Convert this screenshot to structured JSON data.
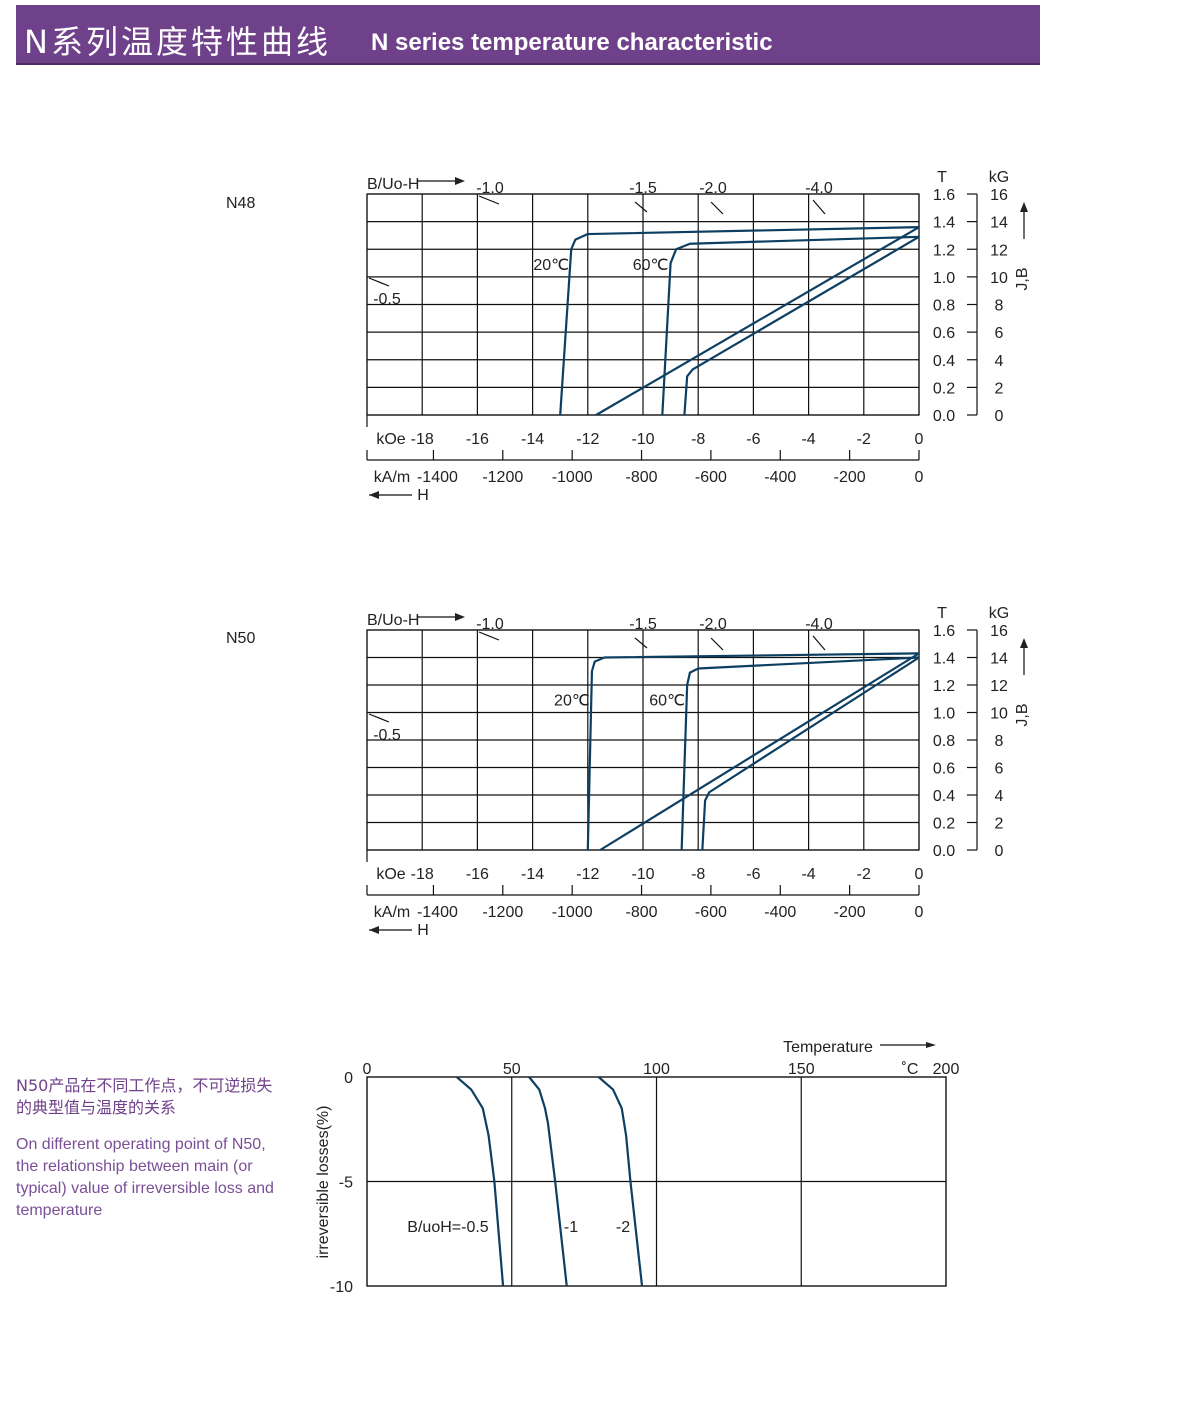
{
  "header": {
    "title_cn": "N系列温度特性曲线",
    "title_en": "N series temperature characteristic"
  },
  "side_note": {
    "cn": "N50产品在不同工作点，不可逆损失的典型值与温度的关系",
    "en": "On different operating point of N50, the relationship between main (or typical) value of irreversible loss and temperature"
  },
  "colors": {
    "header": "#6f418a",
    "curve": "#0d3f63",
    "grid": "#111111"
  },
  "chart_data": [
    {
      "type": "line",
      "label": "N48",
      "x_unit_top": "kOe",
      "x_unit_bottom": "kA/m",
      "x_arrow_label": "H",
      "y_unit_left": "T",
      "y_unit_right": "kG",
      "y_axis_label": "J,B",
      "permeance_label": "B/Uo-H",
      "xlim": [
        -20,
        0
      ],
      "ylim": [
        0,
        1.6
      ],
      "grid": true,
      "x_ticks": [
        -18,
        -16,
        -14,
        -12,
        -10,
        -8,
        -6,
        -4,
        -2,
        0
      ],
      "x_ticks_kAm": [
        -1400,
        -1200,
        -1000,
        -800,
        -600,
        -400,
        -200,
        0
      ],
      "y_ticks": [
        0.0,
        0.2,
        0.4,
        0.6,
        0.8,
        1.0,
        1.2,
        1.4,
        1.6
      ],
      "y_ticks_kG": [
        0,
        2,
        4,
        6,
        8,
        10,
        12,
        14,
        16
      ],
      "permeance_lines": [
        "-0.5",
        "-1.0",
        "-1.5",
        "-2.0",
        "-4.0"
      ],
      "series": [
        {
          "name": "20℃",
          "kind": "J",
          "points": [
            [
              0,
              1.36
            ],
            [
              -12,
              1.31
            ],
            [
              -12.45,
              1.27
            ],
            [
              -12.6,
              1.2
            ],
            [
              -13,
              0
            ]
          ]
        },
        {
          "name": "60℃",
          "kind": "J",
          "points": [
            [
              0,
              1.29
            ],
            [
              -8.3,
              1.24
            ],
            [
              -8.8,
              1.2
            ],
            [
              -9,
              1.1
            ],
            [
              -9.3,
              0
            ]
          ]
        },
        {
          "kind": "B",
          "points": [
            [
              0,
              1.36
            ],
            [
              -11.7,
              0
            ]
          ]
        },
        {
          "kind": "B",
          "points": [
            [
              0,
              1.29
            ],
            [
              -8.2,
              0.33
            ],
            [
              -8.4,
              0.28
            ],
            [
              -8.5,
              0
            ]
          ]
        }
      ]
    },
    {
      "type": "line",
      "label": "N50",
      "x_unit_top": "kOe",
      "x_unit_bottom": "kA/m",
      "x_arrow_label": "H",
      "y_unit_left": "T",
      "y_unit_right": "kG",
      "y_axis_label": "J,B",
      "permeance_label": "B/Uo-H",
      "xlim": [
        -20,
        0
      ],
      "ylim": [
        0,
        1.6
      ],
      "grid": true,
      "x_ticks": [
        -18,
        -16,
        -14,
        -12,
        -10,
        -8,
        -6,
        -4,
        -2,
        0
      ],
      "x_ticks_kAm": [
        -1400,
        -1200,
        -1000,
        -800,
        -600,
        -400,
        -200,
        0
      ],
      "y_ticks": [
        0.0,
        0.2,
        0.4,
        0.6,
        0.8,
        1.0,
        1.2,
        1.4,
        1.6
      ],
      "y_ticks_kG": [
        0,
        2,
        4,
        6,
        8,
        10,
        12,
        14,
        16
      ],
      "permeance_lines": [
        "-0.5",
        "-1.0",
        "-1.5",
        "-2.0",
        "-4.0"
      ],
      "series": [
        {
          "name": "20℃",
          "kind": "J",
          "points": [
            [
              0,
              1.43
            ],
            [
              -11.4,
              1.4
            ],
            [
              -11.75,
              1.37
            ],
            [
              -11.85,
              1.3
            ],
            [
              -12,
              0
            ]
          ]
        },
        {
          "name": "60℃",
          "kind": "J",
          "points": [
            [
              0,
              1.4
            ],
            [
              -8,
              1.32
            ],
            [
              -8.3,
              1.29
            ],
            [
              -8.4,
              1.2
            ],
            [
              -8.6,
              0
            ]
          ]
        },
        {
          "kind": "B",
          "points": [
            [
              0,
              1.43
            ],
            [
              -11.55,
              0
            ]
          ]
        },
        {
          "kind": "B",
          "points": [
            [
              0,
              1.4
            ],
            [
              -7.6,
              0.42
            ],
            [
              -7.75,
              0.36
            ],
            [
              -7.85,
              0
            ]
          ]
        }
      ]
    },
    {
      "type": "line",
      "xlabel": "Temperature",
      "x_unit": "˚C",
      "ylabel": "irreversible  losses(%)",
      "xlim": [
        0,
        200
      ],
      "ylim": [
        -10,
        0
      ],
      "x_ticks": [
        0,
        50,
        100,
        150,
        200
      ],
      "y_ticks": [
        0,
        -5,
        -10
      ],
      "grid": true,
      "series": [
        {
          "name": "B/uoH=-0.5",
          "points": [
            [
              31,
              0
            ],
            [
              36,
              -0.6
            ],
            [
              40,
              -1.5
            ],
            [
              42,
              -2.8
            ],
            [
              44,
              -5
            ],
            [
              47,
              -10
            ]
          ]
        },
        {
          "name": "-1",
          "points": [
            [
              56,
              0
            ],
            [
              59.5,
              -0.6
            ],
            [
              61.5,
              -1.5
            ],
            [
              62.5,
              -2.2
            ],
            [
              65,
              -5
            ],
            [
              69,
              -10
            ]
          ]
        },
        {
          "name": "-2",
          "points": [
            [
              80,
              0
            ],
            [
              85,
              -0.6
            ],
            [
              88,
              -1.5
            ],
            [
              89.5,
              -2.8
            ],
            [
              91,
              -5
            ],
            [
              95,
              -10
            ]
          ]
        }
      ]
    }
  ]
}
